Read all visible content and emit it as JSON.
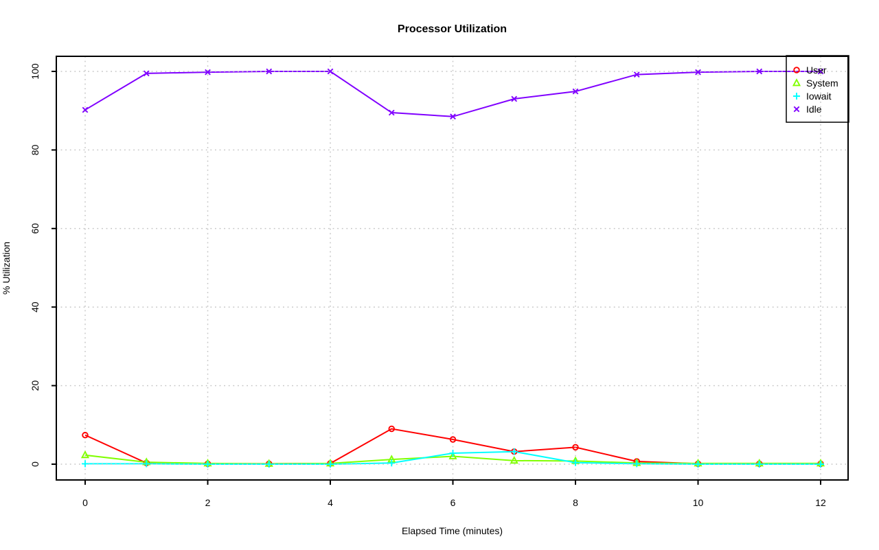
{
  "chart_data": {
    "type": "line",
    "title": "Processor Utilization",
    "xlabel": "Elapsed Time (minutes)",
    "ylabel": "% Utilization",
    "x": [
      0,
      1,
      2,
      3,
      4,
      5,
      6,
      7,
      8,
      9,
      10,
      11,
      12
    ],
    "xticks": [
      0,
      2,
      4,
      6,
      8,
      10,
      12
    ],
    "yticks": [
      0,
      20,
      40,
      60,
      80,
      100
    ],
    "xlim": [
      -0.5,
      12.5
    ],
    "ylim": [
      -4,
      104
    ],
    "grid": "dotted",
    "legend_position": "topright",
    "series": [
      {
        "name": "User",
        "color": "#FF0000",
        "marker": "circle",
        "values": [
          7.4,
          0.3,
          0.1,
          0.1,
          0.2,
          9.0,
          6.3,
          3.2,
          4.3,
          0.7,
          0.1,
          0.1,
          0.1
        ]
      },
      {
        "name": "System",
        "color": "#80FF00",
        "marker": "triangle",
        "values": [
          2.3,
          0.5,
          0.2,
          0.1,
          0.2,
          1.2,
          2.0,
          0.9,
          0.8,
          0.3,
          0.2,
          0.2,
          0.2
        ]
      },
      {
        "name": "Iowait",
        "color": "#00FFFF",
        "marker": "plus",
        "values": [
          0.1,
          0.1,
          0.0,
          0.0,
          0.0,
          0.3,
          2.8,
          3.2,
          0.4,
          0.1,
          0.0,
          0.0,
          0.0
        ]
      },
      {
        "name": "Idle",
        "color": "#8000FF",
        "marker": "x",
        "values": [
          90.2,
          99.5,
          99.8,
          100.0,
          100.0,
          89.5,
          88.5,
          93.0,
          94.9,
          99.2,
          99.8,
          100.0,
          100.0
        ]
      }
    ]
  },
  "colors": {
    "background": "#FFFFFF",
    "axis": "#000000",
    "grid": "#C6C6C6"
  }
}
